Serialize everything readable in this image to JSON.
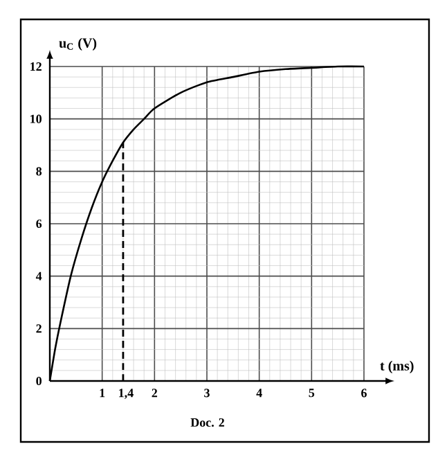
{
  "chart_data": {
    "type": "line",
    "xlabel": "t (ms)",
    "ylabel": "u$_{C}$ (V)",
    "annotations": [
      "Doc. 2"
    ],
    "xlim": [
      0,
      6
    ],
    "ylim": [
      0,
      12
    ],
    "xticks": [
      1,
      {
        "value": 1.4,
        "label": "1,4"
      },
      2,
      3,
      4,
      5,
      6
    ],
    "yticks": [
      0,
      2,
      4,
      6,
      8,
      10,
      12
    ],
    "grid": true,
    "marker": "none",
    "series": [
      {
        "color": "#000000",
        "line_style": "solid",
        "x": [
          0,
          0.1,
          0.2,
          0.4,
          0.6,
          0.8,
          1.0,
          1.2,
          1.4,
          1.6,
          1.8,
          2.0,
          2.5,
          3.0,
          3.5,
          4.0,
          4.5,
          5.0,
          5.5,
          6.0
        ],
        "values": [
          0,
          1.2,
          2.2,
          4.0,
          5.4,
          6.6,
          7.6,
          8.4,
          9.1,
          9.6,
          10.0,
          10.4,
          11.0,
          11.4,
          11.6,
          11.8,
          11.9,
          11.95,
          12.0,
          12.0
        ]
      },
      {
        "color": "#000000",
        "line_style": "dashed",
        "x": [
          1.4,
          1.4
        ],
        "values": [
          0,
          9.1
        ]
      }
    ]
  }
}
